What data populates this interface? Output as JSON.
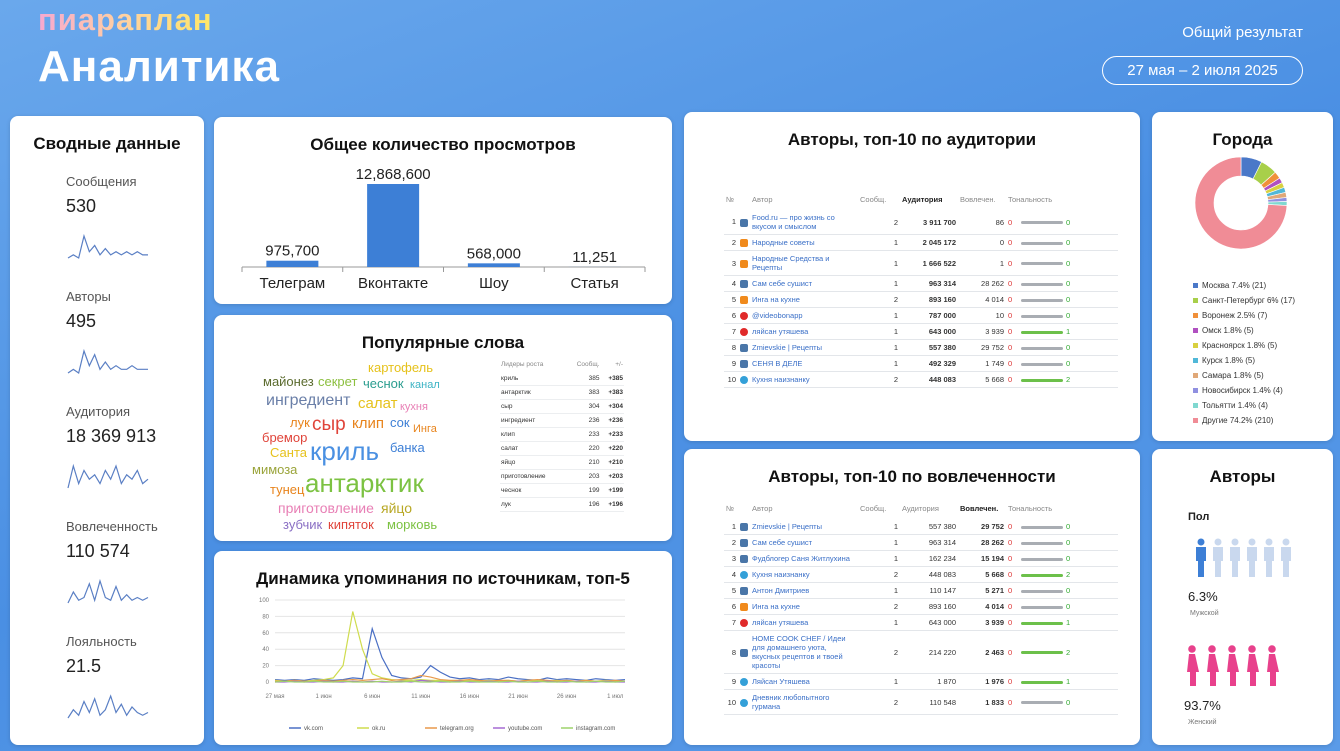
{
  "header": {
    "brand": "пиараплан",
    "title": "Аналитика",
    "result_label": "Общий результат",
    "period": "27 мая – 2 июля 2025"
  },
  "summary": {
    "title": "Сводные данные",
    "items": [
      {
        "label": "Сообщения",
        "value": "530",
        "spark": [
          2,
          3,
          2,
          9,
          4,
          6,
          3,
          5,
          3,
          4,
          3,
          4,
          3,
          4,
          3,
          3
        ]
      },
      {
        "label": "Авторы",
        "value": "495",
        "spark": [
          2,
          3,
          2,
          8,
          4,
          7,
          3,
          5,
          3,
          4,
          3,
          3,
          4,
          3,
          3,
          3
        ]
      },
      {
        "label": "Аудитория",
        "value": "18 369 913",
        "spark": [
          3,
          8,
          4,
          7,
          5,
          6,
          4,
          7,
          5,
          8,
          4,
          6,
          5,
          7,
          4,
          5
        ]
      },
      {
        "label": "Вовлеченность",
        "value": "110 574",
        "spark": [
          2,
          6,
          3,
          4,
          9,
          3,
          10,
          4,
          3,
          8,
          3,
          5,
          3,
          4,
          3,
          4
        ]
      },
      {
        "label": "Лояльность",
        "value": "21.5",
        "spark": [
          2,
          5,
          3,
          8,
          4,
          9,
          3,
          5,
          10,
          4,
          7,
          3,
          6,
          4,
          3,
          4
        ]
      }
    ]
  },
  "views": {
    "type": "bar",
    "title": "Общее количество просмотров",
    "categories": [
      "Телеграм",
      "Вконтакте",
      "Шоу",
      "Статья"
    ],
    "values": [
      975700,
      12868600,
      568000,
      11251
    ],
    "value_labels": [
      "975,700",
      "12,868,600",
      "568,000",
      "11,251"
    ],
    "color": "#3d7fd6"
  },
  "words": {
    "title": "Популярные слова",
    "cloud": [
      {
        "text": "картофель",
        "color": "#e6c21c"
      },
      {
        "text": "майонез",
        "color": "#5b6b2e"
      },
      {
        "text": "секрет",
        "color": "#8cbf3f"
      },
      {
        "text": "чеснок",
        "color": "#2a9d8f"
      },
      {
        "text": "канал",
        "color": "#3bb3c4"
      },
      {
        "text": "ингредиент",
        "color": "#6a7fa8"
      },
      {
        "text": "салат",
        "color": "#e6c21c"
      },
      {
        "text": "кухня",
        "color": "#e87fb5"
      },
      {
        "text": "лук",
        "color": "#e8841c"
      },
      {
        "text": "сыр",
        "color": "#e0443a"
      },
      {
        "text": "клип",
        "color": "#e8841c"
      },
      {
        "text": "сок",
        "color": "#3d7fd6"
      },
      {
        "text": "Инга",
        "color": "#e8841c"
      },
      {
        "text": "бремор",
        "color": "#e0443a"
      },
      {
        "text": "криль",
        "color": "#4a90e2"
      },
      {
        "text": "банка",
        "color": "#3d7fd6"
      },
      {
        "text": "Санта",
        "color": "#e6c21c"
      },
      {
        "text": "мимоза",
        "color": "#9aa43a"
      },
      {
        "text": "антарктик",
        "color": "#7cc242"
      },
      {
        "text": "тунец",
        "color": "#e8841c"
      },
      {
        "text": "приготовление",
        "color": "#e87fb5"
      },
      {
        "text": "яйцо",
        "color": "#b8a825"
      },
      {
        "text": "зубчик",
        "color": "#8a6fc4"
      },
      {
        "text": "кипяток",
        "color": "#e0443a"
      },
      {
        "text": "морковь",
        "color": "#7cc242"
      }
    ],
    "table": {
      "headers": [
        "Лидеры роста",
        "Сообщ.",
        "+/-"
      ],
      "rows": [
        [
          "криль",
          "385",
          "+385"
        ],
        [
          "антарктик",
          "383",
          "+383"
        ],
        [
          "сыр",
          "304",
          "+304"
        ],
        [
          "ингредиент",
          "236",
          "+236"
        ],
        [
          "клип",
          "233",
          "+233"
        ],
        [
          "салат",
          "220",
          "+220"
        ],
        [
          "яйцо",
          "210",
          "+210"
        ],
        [
          "приготовление",
          "203",
          "+203"
        ],
        [
          "чеснок",
          "199",
          "+199"
        ],
        [
          "лук",
          "196",
          "+196"
        ]
      ]
    }
  },
  "dynamics": {
    "type": "line",
    "title": "Динамика упоминания по источникам, топ-5",
    "categories": [
      "27 мая",
      null,
      null,
      null,
      null,
      "1 июн",
      null,
      null,
      null,
      null,
      "6 июн",
      null,
      null,
      null,
      null,
      "11 июн",
      null,
      null,
      null,
      null,
      "16 июн",
      null,
      null,
      null,
      null,
      "21 июн",
      null,
      null,
      null,
      null,
      "26 июн",
      null,
      null,
      null,
      null,
      "1 июл",
      null
    ],
    "ylim": [
      0,
      100
    ],
    "yticks": [
      0,
      20,
      40,
      60,
      80,
      100
    ],
    "grid": true,
    "series": [
      {
        "name": "vk.com",
        "color": "#4a6fc4",
        "values": [
          3,
          2,
          3,
          2,
          4,
          3,
          2,
          3,
          5,
          4,
          65,
          30,
          8,
          5,
          4,
          6,
          20,
          12,
          6,
          4,
          5,
          3,
          4,
          3,
          6,
          4,
          3,
          2,
          5,
          3,
          4,
          3,
          2,
          4,
          3,
          2,
          3
        ]
      },
      {
        "name": "ok.ru",
        "color": "#cfdc4e",
        "values": [
          2,
          1,
          2,
          1,
          2,
          3,
          5,
          20,
          86,
          40,
          10,
          5,
          3,
          2,
          2,
          3,
          2,
          2,
          1,
          2,
          2,
          1,
          2,
          1,
          2,
          1,
          2,
          2,
          1,
          2,
          1,
          1,
          2,
          1,
          2,
          1,
          1
        ]
      },
      {
        "name": "telegram.org",
        "color": "#e8994a",
        "values": [
          1,
          1,
          2,
          1,
          1,
          2,
          1,
          2,
          3,
          2,
          3,
          4,
          2,
          3,
          4,
          8,
          6,
          3,
          2,
          2,
          3,
          2,
          1,
          2,
          2,
          1,
          2,
          3,
          2,
          1,
          2,
          1,
          2,
          1,
          1,
          2,
          1
        ]
      },
      {
        "name": "youtube.com",
        "color": "#a56ad2",
        "values": [
          0,
          0,
          1,
          0,
          0,
          1,
          0,
          0,
          1,
          0,
          1,
          0,
          0,
          1,
          0,
          2,
          1,
          0,
          0,
          1,
          0,
          0,
          1,
          0,
          0,
          1,
          0,
          0,
          1,
          0,
          0,
          1,
          0,
          0,
          1,
          0,
          0
        ]
      },
      {
        "name": "instagram.com",
        "color": "#9ed36a",
        "values": [
          0,
          1,
          0,
          0,
          1,
          0,
          0,
          1,
          0,
          0,
          0,
          1,
          0,
          0,
          1,
          0,
          0,
          1,
          0,
          0,
          1,
          0,
          0,
          0,
          1,
          0,
          0,
          1,
          0,
          0,
          1,
          0,
          0,
          1,
          0,
          0,
          1
        ]
      }
    ]
  },
  "authors_audience": {
    "title": "Авторы, топ-10 по аудитории",
    "headers": [
      "№",
      "Автор",
      "Сообщ.",
      "Аудитория",
      "Вовлечен.",
      "Тональность"
    ],
    "sources": [
      "vk",
      "ok",
      "ok",
      "vk",
      "ok",
      "yt",
      "yt",
      "vk",
      "vk",
      "tg"
    ],
    "rows": [
      [
        "1",
        "Food.ru — про жизнь со вкусом и смыслом",
        "2",
        "3 911 700",
        "86",
        "0",
        "0"
      ],
      [
        "2",
        "Народные советы",
        "1",
        "2 045 172",
        "0",
        "0",
        "0"
      ],
      [
        "3",
        "Народные Средства и Рецепты",
        "1",
        "1 666 522",
        "1",
        "0",
        "0"
      ],
      [
        "4",
        "Сам себе сушист",
        "1",
        "963 314",
        "28 262",
        "0",
        "0"
      ],
      [
        "5",
        "Инга на кухне",
        "2",
        "893 160",
        "4 014",
        "0",
        "0"
      ],
      [
        "6",
        "@videobonapp",
        "1",
        "787 000",
        "10",
        "0",
        "0"
      ],
      [
        "7",
        "ляйсан утяшева",
        "1",
        "643 000",
        "3 939",
        "0",
        "1"
      ],
      [
        "8",
        "Zmievskie | Рецепты",
        "1",
        "557 380",
        "29 752",
        "0",
        "0"
      ],
      [
        "9",
        "СЕНЯ В ДЕЛЕ",
        "1",
        "492 329",
        "1 749",
        "0",
        "0"
      ],
      [
        "10",
        "Кухня наизнанку",
        "2",
        "448 083",
        "5 668",
        "0",
        "2"
      ]
    ]
  },
  "authors_engagement": {
    "title": "Авторы, топ-10 по вовлеченности",
    "headers": [
      "№",
      "Автор",
      "Сообщ.",
      "Аудитория",
      "Вовлечен.",
      "Тональность"
    ],
    "sources": [
      "vk",
      "vk",
      "vk",
      "tg",
      "vk",
      "ok",
      "yt",
      "vk",
      "tg",
      "tg"
    ],
    "rows": [
      [
        "1",
        "Zmievskie | Рецепты",
        "1",
        "557 380",
        "29 752",
        "0",
        "0"
      ],
      [
        "2",
        "Сам себе сушист",
        "1",
        "963 314",
        "28 262",
        "0",
        "0"
      ],
      [
        "3",
        "Фудблогер Саня Житлухина",
        "1",
        "162 234",
        "15 194",
        "0",
        "0"
      ],
      [
        "4",
        "Кухня наизнанку",
        "2",
        "448 083",
        "5 668",
        "0",
        "2"
      ],
      [
        "5",
        "Антон Дмитриев",
        "1",
        "110 147",
        "5 271",
        "0",
        "0"
      ],
      [
        "6",
        "Инга на кухне",
        "2",
        "893 160",
        "4 014",
        "0",
        "0"
      ],
      [
        "7",
        "ляйсан утяшева",
        "1",
        "643 000",
        "3 939",
        "0",
        "1"
      ],
      [
        "8",
        "HOME COOK CHEF / Идеи для домашнего уюта, вкусных рецептов и твоей красоты",
        "2",
        "214 220",
        "2 463",
        "0",
        "2"
      ],
      [
        "9",
        "Ляйсан Утяшева",
        "1",
        "1 870",
        "1 976",
        "0",
        "1"
      ],
      [
        "10",
        "Дневник любопытного гурмана",
        "2",
        "110 548",
        "1 833",
        "0",
        "0"
      ]
    ]
  },
  "cities": {
    "type": "pie",
    "title": "Города",
    "legend_labels": [
      "Москва 7.4% (21)",
      "Санкт-Петербург 6% (17)",
      "Воронеж 2.5% (7)",
      "Омск 1.8% (5)",
      "Красноярск 1.8% (5)",
      "Курск 1.8% (5)",
      "Самара 1.8% (5)",
      "Новосибирск 1.4% (4)",
      "Тольятти 1.4% (4)",
      "Другие 74.2% (210)"
    ],
    "values": [
      7.4,
      6,
      2.5,
      1.8,
      1.8,
      1.8,
      1.8,
      1.4,
      1.4,
      74.2
    ],
    "colors": [
      "#4a78c8",
      "#a8cf4a",
      "#f0903a",
      "#b050c0",
      "#d8d040",
      "#50b8d8",
      "#e0a878",
      "#9090e0",
      "#80d8d0",
      "#f08c96"
    ]
  },
  "gender": {
    "title": "Авторы",
    "subtitle": "Пол",
    "categories": [
      "Мужской",
      "Женский"
    ],
    "values": [
      6.3,
      93.7
    ],
    "value_labels": [
      "6.3%",
      "93.7%"
    ],
    "colors": [
      "#3d7fd6",
      "#e8418c"
    ]
  }
}
